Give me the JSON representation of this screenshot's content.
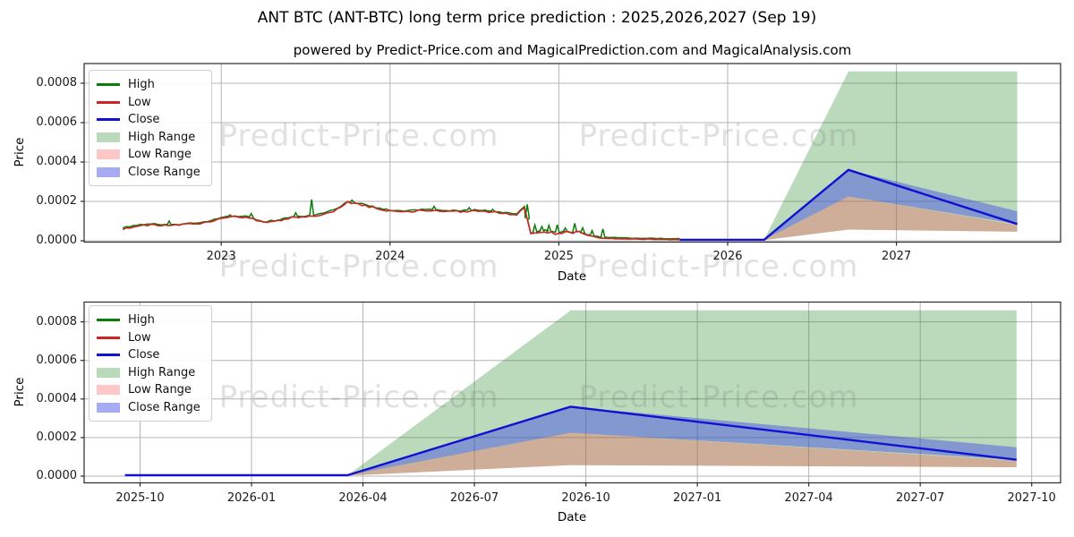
{
  "title": "ANT BTC (ANT-BTC) long term price prediction : 2025,2026,2027 (Sep 19)",
  "subtitle": "powered by Predict-Price.com and MagicalPrediction.com and MagicalAnalysis.com",
  "watermark_text": "Predict-Price.com",
  "colors": {
    "high_line": "#0a7d0a",
    "low_line": "#cc2525",
    "close_line": "#1111d0",
    "high_range_fill": "rgba(44,140,44,0.32)",
    "low_range_fill": "rgba(250,80,80,0.32)",
    "close_range_fill": "rgba(70,80,230,0.48)",
    "grid": "#b4b4b4",
    "spine": "#2a2a2a",
    "watermark": "rgba(120,120,120,0.22)"
  },
  "legend": {
    "items": [
      {
        "label": "High",
        "type": "line",
        "color": "#0a7d0a"
      },
      {
        "label": "Low",
        "type": "line",
        "color": "#cc2525"
      },
      {
        "label": "Close",
        "type": "line",
        "color": "#1111d0"
      },
      {
        "label": "High Range",
        "type": "patch",
        "color": "rgba(44,140,44,0.32)"
      },
      {
        "label": "Low Range",
        "type": "patch",
        "color": "rgba(250,80,80,0.32)"
      },
      {
        "label": "Close Range",
        "type": "patch",
        "color": "rgba(70,80,230,0.48)"
      }
    ]
  },
  "chart_data": [
    {
      "type": "line",
      "position": "top",
      "xlabel": "Date",
      "ylabel": "Price",
      "x_ticks": [
        "2023",
        "2024",
        "2025",
        "2026",
        "2027"
      ],
      "y_ticks": [
        "0.0000",
        "0.0002",
        "0.0004",
        "0.0006",
        "0.0008"
      ],
      "ylim": [
        0,
        0.0009
      ],
      "grid": true,
      "legend_position": "upper left",
      "historical": {
        "dates": [
          "2022-06",
          "2022-07",
          "2022-08",
          "2022-09",
          "2022-10",
          "2022-11",
          "2022-12",
          "2023-01",
          "2023-02",
          "2023-03",
          "2023-04",
          "2023-05",
          "2023-06",
          "2023-07",
          "2023-08",
          "2023-09",
          "2023-10",
          "2023-11",
          "2023-12",
          "2024-01",
          "2024-02",
          "2024-03",
          "2024-04",
          "2024-05",
          "2024-06",
          "2024-07",
          "2024-08",
          "2024-09",
          "2024-10",
          "2024-10-18",
          "2024-11-01",
          "2024-11-15",
          "2024-12-01",
          "2024-12-15",
          "2025-01-01",
          "2025-01-15",
          "2025-02-01",
          "2025-02-15",
          "2025-03-01",
          "2025-03-15",
          "2025-04-01",
          "2025-05-01",
          "2025-06-01",
          "2025-07-01",
          "2025-08-01",
          "2025-09-19"
        ],
        "low": [
          6e-05,
          7.7e-05,
          8e-05,
          7.6e-05,
          8e-05,
          8.6e-05,
          9.2e-05,
          0.000112,
          0.000122,
          0.000118,
          9.2e-05,
          0.0001,
          0.000118,
          0.00012,
          0.000132,
          0.00015,
          0.000195,
          0.000182,
          0.000165,
          0.00015,
          0.000148,
          0.000152,
          0.000155,
          0.00015,
          0.000148,
          0.000152,
          0.000148,
          0.00014,
          0.000132,
          0.000172,
          3.5e-05,
          4.2e-05,
          4.8e-05,
          4e-05,
          3.6e-05,
          4.4e-05,
          4e-05,
          4.6e-05,
          2.6e-05,
          2e-05,
          1.4e-05,
          1.1e-05,
          9e-06,
          8e-06,
          7e-06,
          6e-06
        ],
        "high_offset": 3.5e-06,
        "high_spikes": [
          [
            "2022-09-10",
            0.0001
          ],
          [
            "2023-01-20",
            0.000132
          ],
          [
            "2023-03-05",
            0.000138
          ],
          [
            "2023-06-10",
            0.000142
          ],
          [
            "2023-07-14",
            0.00021
          ],
          [
            "2023-10-10",
            0.000207
          ],
          [
            "2024-04-05",
            0.000175
          ],
          [
            "2024-06-20",
            0.000168
          ],
          [
            "2024-08-10",
            0.00016
          ],
          [
            "2024-10-24",
            0.000185
          ],
          [
            "2024-11-10",
            8e-05
          ],
          [
            "2024-11-25",
            7.2e-05
          ],
          [
            "2024-12-10",
            7.8e-05
          ],
          [
            "2024-12-28",
            8.2e-05
          ],
          [
            "2025-01-15",
            6.5e-05
          ],
          [
            "2025-02-05",
            8.8e-05
          ],
          [
            "2025-02-22",
            6.6e-05
          ],
          [
            "2025-03-12",
            5.2e-05
          ],
          [
            "2025-04-05",
            6e-05
          ]
        ]
      },
      "prediction": {
        "dates": [
          "2025-09-19",
          "2026-03-19",
          "2026-09-19",
          "2027-09-19"
        ],
        "close": [
          5e-06,
          5e-06,
          0.00036,
          8.5e-05
        ],
        "close_min": [
          5e-06,
          5e-06,
          0.000225,
          8.5e-05
        ],
        "close_max": [
          5e-06,
          5e-06,
          0.00036,
          0.00015
        ],
        "low_min": [
          3e-06,
          3e-06,
          5.7e-05,
          4.6e-05
        ],
        "low_max": [
          5e-06,
          5e-06,
          0.000225,
          8e-05
        ],
        "high_min": [
          3e-06,
          3e-06,
          5.7e-05,
          4.6e-05
        ],
        "high_max": [
          5e-06,
          5e-06,
          0.00086,
          0.00086
        ]
      }
    },
    {
      "type": "line",
      "position": "bottom",
      "xlabel": "Date",
      "ylabel": "Price",
      "x_ticks": [
        "2025-10",
        "2026-01",
        "2026-04",
        "2026-07",
        "2026-10",
        "2027-01",
        "2027-04",
        "2027-07",
        "2027-10"
      ],
      "y_ticks": [
        "0.0000",
        "0.0002",
        "0.0004",
        "0.0006",
        "0.0008"
      ],
      "ylim": [
        0,
        0.0009
      ],
      "grid": true,
      "legend_position": "upper left",
      "prediction": {
        "dates": [
          "2025-09-19",
          "2026-03-19",
          "2026-09-19",
          "2027-09-19"
        ],
        "close": [
          5e-06,
          5e-06,
          0.00036,
          8.5e-05
        ],
        "close_min": [
          5e-06,
          5e-06,
          0.000225,
          8.5e-05
        ],
        "close_max": [
          5e-06,
          5e-06,
          0.00036,
          0.00015
        ],
        "low_min": [
          3e-06,
          3e-06,
          5.7e-05,
          4.6e-05
        ],
        "low_max": [
          5e-06,
          5e-06,
          0.000225,
          8e-05
        ],
        "high_min": [
          3e-06,
          3e-06,
          5.7e-05,
          4.6e-05
        ],
        "high_max": [
          5e-06,
          5e-06,
          0.00086,
          0.00086
        ]
      }
    }
  ]
}
